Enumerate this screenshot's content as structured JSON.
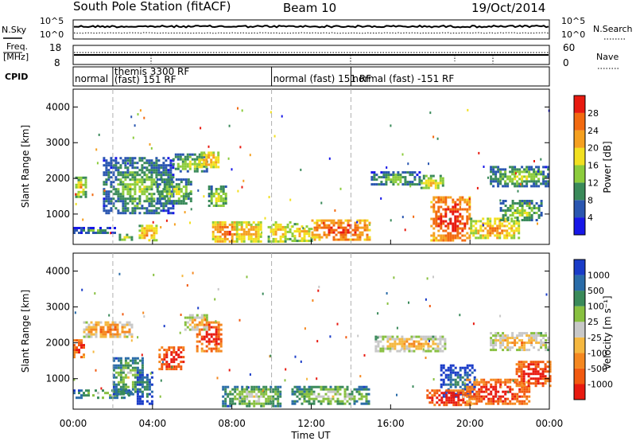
{
  "header": {
    "station": "South Pole Station (fitACF)",
    "beam": "Beam 10",
    "date": "19/Oct/2014"
  },
  "top_panels": {
    "nsky_label": "N.Sky",
    "nsky_ticks": [
      "10^5",
      "10^0"
    ],
    "nsearch_label": "N.Search",
    "nsearch_ticks": [
      "10^5",
      "10^0"
    ],
    "freq_label_1": "Freq.",
    "freq_label_2": "[MHz]",
    "freq_ticks": [
      "18",
      "8"
    ],
    "nave_label": "Nave",
    "nave_ticks": [
      "60",
      "0"
    ],
    "cpid_label": "CPID",
    "cpid_segments": [
      {
        "start_h": 0.0,
        "end_h": 2.0,
        "lines": [
          "normal"
        ]
      },
      {
        "start_h": 2.0,
        "end_h": 10.0,
        "lines": [
          "themis 3300 RF",
          "(fast) 151 RF"
        ]
      },
      {
        "start_h": 10.0,
        "end_h": 14.0,
        "lines": [
          "normal (fast) 151 RF"
        ]
      },
      {
        "start_h": 14.0,
        "end_h": 24.0,
        "lines": [
          "normal (fast) -151 RF"
        ]
      }
    ]
  },
  "chart_data": [
    {
      "type": "heatmap",
      "panel": "power",
      "xlabel": "",
      "ylabel": "Slant Range [km]",
      "xlim": [
        0,
        24
      ],
      "ylim": [
        150,
        4500
      ],
      "yticks": [
        1000,
        2000,
        3000,
        4000
      ],
      "ytick_labels": [
        "1000",
        "2000",
        "3000",
        "4000"
      ],
      "colorbar": {
        "label": "Power [dB]",
        "ticks": [
          "4",
          "8",
          "12",
          "16",
          "20",
          "24",
          "28"
        ],
        "colors": [
          "#1717e8",
          "#2a56b0",
          "#3a8a5a",
          "#8ccc3c",
          "#f2e020",
          "#f5a020",
          "#f26a10",
          "#e81a10"
        ]
      },
      "regions": [
        {
          "t0": 0.1,
          "t1": 0.6,
          "r0": 1500,
          "r1": 2050,
          "level": 0.45
        },
        {
          "t0": 0.0,
          "t1": 2.1,
          "r0": 480,
          "r1": 640,
          "level": 0.2
        },
        {
          "t0": 1.5,
          "t1": 5.0,
          "r0": 1000,
          "r1": 2600,
          "level": 0.25
        },
        {
          "t0": 2.3,
          "t1": 3.0,
          "r0": 300,
          "r1": 450,
          "level": 0.4
        },
        {
          "t0": 3.3,
          "t1": 4.2,
          "r0": 280,
          "r1": 700,
          "level": 0.55
        },
        {
          "t0": 4.2,
          "t1": 6.0,
          "r0": 1300,
          "r1": 2000,
          "level": 0.3
        },
        {
          "t0": 5.0,
          "t1": 6.8,
          "r0": 2200,
          "r1": 2700,
          "level": 0.3
        },
        {
          "t0": 6.3,
          "t1": 7.3,
          "r0": 2300,
          "r1": 2750,
          "level": 0.55
        },
        {
          "t0": 6.8,
          "t1": 7.7,
          "r0": 1200,
          "r1": 1800,
          "level": 0.35
        },
        {
          "t0": 7.0,
          "t1": 8.3,
          "r0": 250,
          "r1": 800,
          "level": 0.65
        },
        {
          "t0": 8.2,
          "t1": 9.5,
          "r0": 250,
          "r1": 800,
          "level": 0.55
        },
        {
          "t0": 9.8,
          "t1": 10.9,
          "r0": 250,
          "r1": 800,
          "level": 0.5
        },
        {
          "t0": 11.0,
          "t1": 12.0,
          "r0": 280,
          "r1": 750,
          "level": 0.5
        },
        {
          "t0": 12.0,
          "t1": 14.9,
          "r0": 300,
          "r1": 850,
          "level": 0.72
        },
        {
          "t0": 15.0,
          "t1": 17.5,
          "r0": 1800,
          "r1": 2200,
          "level": 0.25
        },
        {
          "t0": 17.5,
          "t1": 18.6,
          "r0": 1700,
          "r1": 2100,
          "level": 0.45
        },
        {
          "t0": 18.0,
          "t1": 20.0,
          "r0": 250,
          "r1": 1500,
          "level": 0.78
        },
        {
          "t0": 20.0,
          "t1": 22.5,
          "r0": 300,
          "r1": 900,
          "level": 0.55
        },
        {
          "t0": 21.0,
          "t1": 24.0,
          "r0": 1800,
          "r1": 2350,
          "level": 0.3
        },
        {
          "t0": 21.5,
          "t1": 23.6,
          "r0": 800,
          "r1": 1400,
          "level": 0.3
        }
      ]
    },
    {
      "type": "heatmap",
      "panel": "velocity",
      "xlabel": "Time UT",
      "ylabel": "Slant Range [km]",
      "xlim": [
        0,
        24
      ],
      "ylim": [
        150,
        4500
      ],
      "xticks": [
        0,
        4,
        8,
        12,
        16,
        20,
        24
      ],
      "xtick_labels": [
        "00:00",
        "04:00",
        "08:00",
        "12:00",
        "16:00",
        "20:00",
        "00:00"
      ],
      "yticks": [
        1000,
        2000,
        3000,
        4000
      ],
      "ytick_labels": [
        "1000",
        "2000",
        "3000",
        "4000"
      ],
      "colorbar": {
        "label": "Velocity [m s⁻¹]",
        "ticks": [
          "1000",
          "500",
          "100",
          "25",
          "-25",
          "-100",
          "-500",
          "-1000"
        ],
        "colors": [
          "#1a3cc8",
          "#2a6ca8",
          "#3a8a5a",
          "#88c040",
          "#c8c8c8",
          "#f5b840",
          "#f58820",
          "#f25a10",
          "#e81a10"
        ]
      },
      "regions": [
        {
          "t0": 0.0,
          "t1": 0.6,
          "r0": 1600,
          "r1": 2100,
          "level": 0.8
        },
        {
          "t0": 0.5,
          "t1": 3.0,
          "r0": 2200,
          "r1": 2600,
          "level": 0.6
        },
        {
          "t0": 0.0,
          "t1": 3.0,
          "r0": 480,
          "r1": 700,
          "level": 0.25
        },
        {
          "t0": 2.0,
          "t1": 3.5,
          "r0": 600,
          "r1": 1600,
          "level": 0.25
        },
        {
          "t0": 3.2,
          "t1": 4.0,
          "r0": 300,
          "r1": 1200,
          "level": 0.1
        },
        {
          "t0": 4.3,
          "t1": 5.6,
          "r0": 1300,
          "r1": 1900,
          "level": 0.85
        },
        {
          "t0": 6.2,
          "t1": 7.5,
          "r0": 1800,
          "r1": 2600,
          "level": 0.8
        },
        {
          "t0": 5.6,
          "t1": 6.8,
          "r0": 2400,
          "r1": 2800,
          "level": 0.5
        },
        {
          "t0": 7.5,
          "t1": 10.5,
          "r0": 250,
          "r1": 800,
          "level": 0.3
        },
        {
          "t0": 11.0,
          "t1": 14.9,
          "r0": 300,
          "r1": 800,
          "level": 0.3
        },
        {
          "t0": 15.2,
          "t1": 18.8,
          "r0": 1800,
          "r1": 2200,
          "level": 0.5
        },
        {
          "t0": 18.5,
          "t1": 20.3,
          "r0": 500,
          "r1": 1400,
          "level": 0.05
        },
        {
          "t0": 17.8,
          "t1": 20.0,
          "r0": 250,
          "r1": 700,
          "level": 0.85
        },
        {
          "t0": 19.8,
          "t1": 23.0,
          "r0": 300,
          "r1": 1000,
          "level": 0.8
        },
        {
          "t0": 21.0,
          "t1": 24.0,
          "r0": 1800,
          "r1": 2300,
          "level": 0.5
        },
        {
          "t0": 22.3,
          "t1": 24.0,
          "r0": 800,
          "r1": 1500,
          "level": 0.85
        }
      ]
    }
  ]
}
